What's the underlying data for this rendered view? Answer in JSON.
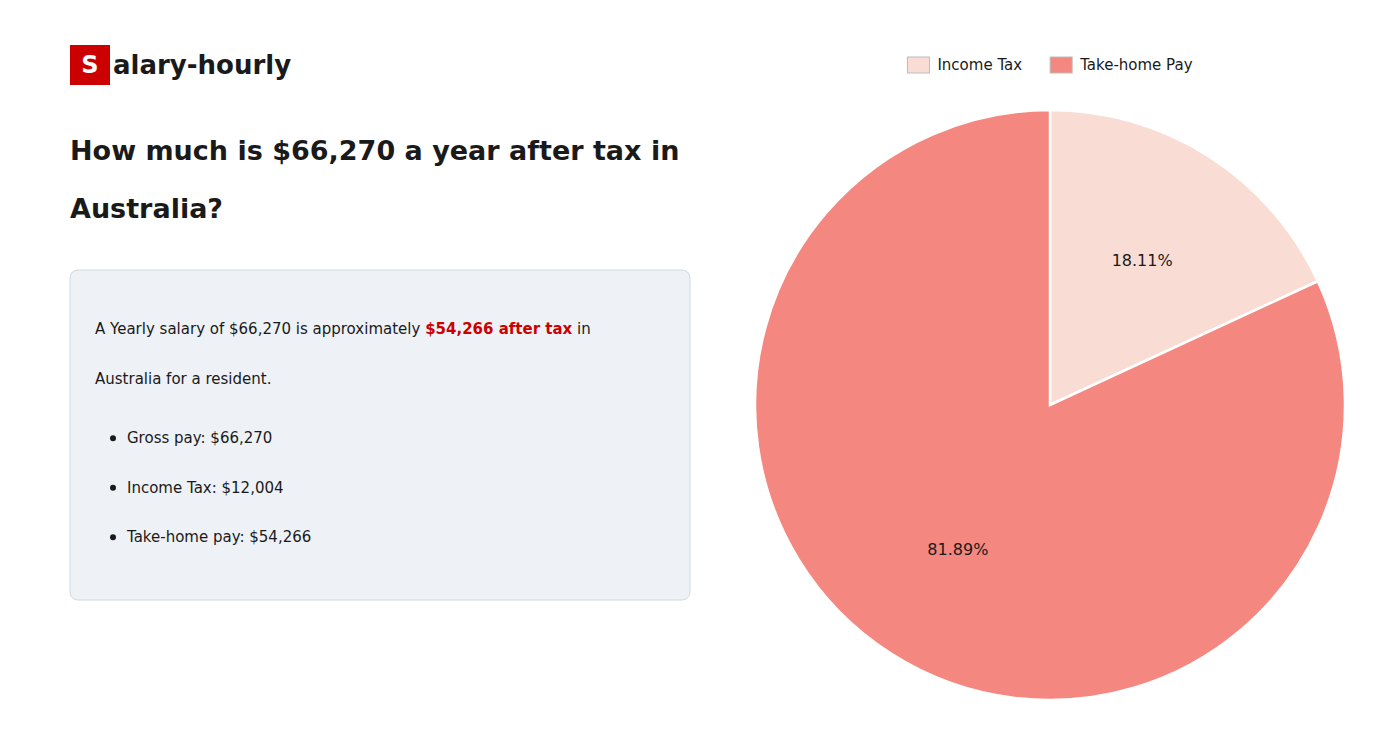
{
  "chart_data": {
    "type": "pie",
    "title": [
      "How much is $66,270 a year after tax in",
      "Australia?"
    ],
    "annotations": [
      "S",
      "alary-hourly",
      "A Yearly salary of $66,270 is approximately ",
      "$54,266 after tax",
      " in",
      "Australia for a resident.",
      "Gross pay: $66,270",
      "Income Tax: $12,004",
      "Take-home pay: $54,266"
    ],
    "categories": [
      "Income Tax",
      "Take-home Pay"
    ],
    "values": [
      18.11,
      81.89
    ],
    "value_labels": [
      "18.11%",
      "81.89%"
    ],
    "colors": [
      "#f9ddd4",
      "#f4877f"
    ],
    "data_labels": true,
    "legend": "top"
  }
}
